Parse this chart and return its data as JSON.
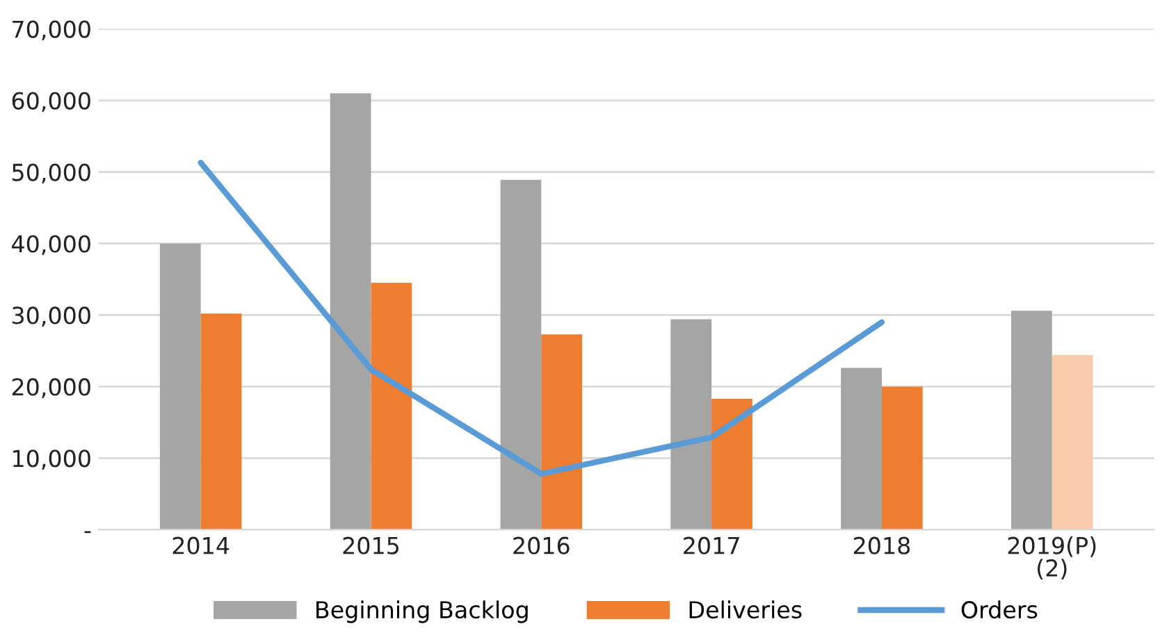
{
  "chart_data": {
    "type": "bar",
    "categories": [
      "2014",
      "2015",
      "2016",
      "2017",
      "2018",
      "2019(P)\n(2)"
    ],
    "series": [
      {
        "name": "Beginning Backlog",
        "color": "#a5a5a5",
        "values": [
          40000,
          61000,
          48900,
          29400,
          22600,
          30600
        ]
      },
      {
        "name": "Deliveries",
        "color": "#ed7d31",
        "colors": [
          "#ed7d31",
          "#ed7d31",
          "#ed7d31",
          "#ed7d31",
          "#ed7d31",
          "#f8cbad"
        ],
        "values": [
          30200,
          34500,
          27300,
          18300,
          20000,
          24400
        ]
      },
      {
        "name": "Orders",
        "type": "line",
        "color": "#5b9bd5",
        "values": [
          51300,
          22400,
          7800,
          12900,
          29000,
          null
        ]
      }
    ],
    "ylim": [
      0,
      70000
    ],
    "yticks": [
      {
        "value": 0,
        "label": "-"
      },
      {
        "value": 10000,
        "label": "10,000"
      },
      {
        "value": 20000,
        "label": "20,000"
      },
      {
        "value": 30000,
        "label": "30,000"
      },
      {
        "value": 40000,
        "label": "40,000"
      },
      {
        "value": 50000,
        "label": "50,000"
      },
      {
        "value": 60000,
        "label": "60,000"
      },
      {
        "value": 70000,
        "label": "70,000"
      }
    ],
    "grid": "y",
    "legend": "bottom",
    "marker": "none",
    "line_style": "solid"
  }
}
